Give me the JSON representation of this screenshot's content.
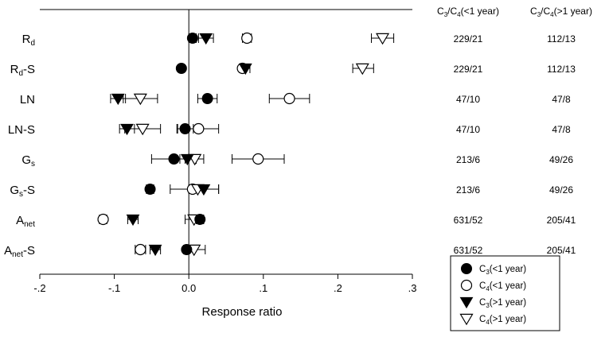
{
  "chart_data": {
    "type": "scatter",
    "title": "",
    "xlabel": "Response ratio",
    "ylabel": "",
    "xlim": [
      -0.2,
      0.3
    ],
    "xticks": [
      {
        "v": -0.2,
        "label": "-.2"
      },
      {
        "v": -0.1,
        "label": "-.1"
      },
      {
        "v": 0.0,
        "label": "0.0"
      },
      {
        "v": 0.1,
        "label": ".1"
      },
      {
        "v": 0.2,
        "label": ".2"
      },
      {
        "v": 0.3,
        "label": ".3"
      }
    ],
    "grid": false,
    "reference_line": 0,
    "categories": [
      {
        "base": "R",
        "sub": "d",
        "suffix": ""
      },
      {
        "base": "R",
        "sub": "d",
        "suffix": "-S"
      },
      {
        "base": "LN",
        "sub": "",
        "suffix": ""
      },
      {
        "base": "LN",
        "sub": "",
        "suffix": "-S"
      },
      {
        "base": "G",
        "sub": "s",
        "suffix": ""
      },
      {
        "base": "G",
        "sub": "s",
        "suffix": "-S"
      },
      {
        "base": "A",
        "sub": "net",
        "suffix": ""
      },
      {
        "base": "A",
        "sub": "net",
        "suffix": "-S"
      }
    ],
    "series": [
      {
        "legend": {
          "base": "C",
          "sub": "3",
          "suffix": "(<1 year)"
        },
        "marker": "filled-circle",
        "points": [
          {
            "mean": 0.005,
            "lo": 0.0,
            "hi": 0.01
          },
          {
            "mean": -0.01,
            "lo": -0.013,
            "hi": -0.007
          },
          {
            "mean": 0.025,
            "lo": 0.012,
            "hi": 0.038
          },
          {
            "mean": -0.005,
            "lo": -0.016,
            "hi": 0.006
          },
          {
            "mean": -0.02,
            "lo": -0.05,
            "hi": 0.01
          },
          {
            "mean": -0.052,
            "lo": -0.057,
            "hi": -0.047
          },
          {
            "mean": 0.015,
            "lo": 0.01,
            "hi": 0.02
          },
          {
            "mean": -0.003,
            "lo": -0.007,
            "hi": 0.001
          }
        ]
      },
      {
        "legend": {
          "base": "C",
          "sub": "4",
          "suffix": "(<1 year)"
        },
        "marker": "open-circle",
        "points": [
          {
            "mean": 0.078,
            "lo": 0.072,
            "hi": 0.084
          },
          {
            "mean": 0.072,
            "lo": 0.068,
            "hi": 0.076
          },
          {
            "mean": 0.135,
            "lo": 0.108,
            "hi": 0.162
          },
          {
            "mean": 0.013,
            "lo": -0.015,
            "hi": 0.04
          },
          {
            "mean": 0.093,
            "lo": 0.058,
            "hi": 0.128
          },
          {
            "mean": 0.005,
            "lo": -0.025,
            "hi": 0.04
          },
          {
            "mean": -0.115,
            "lo": -0.12,
            "hi": -0.11
          },
          {
            "mean": -0.065,
            "lo": -0.072,
            "hi": -0.058
          }
        ]
      },
      {
        "legend": {
          "base": "C",
          "sub": "3",
          "suffix": "(>1 year)"
        },
        "marker": "filled-triangle",
        "points": [
          {
            "mean": 0.023,
            "lo": 0.013,
            "hi": 0.033
          },
          {
            "mean": 0.076,
            "lo": 0.07,
            "hi": 0.082
          },
          {
            "mean": -0.095,
            "lo": -0.105,
            "hi": -0.085
          },
          {
            "mean": -0.083,
            "lo": -0.093,
            "hi": -0.073
          },
          {
            "mean": -0.002,
            "lo": -0.012,
            "hi": 0.008
          },
          {
            "mean": 0.02,
            "lo": 0.0,
            "hi": 0.04
          },
          {
            "mean": -0.075,
            "lo": -0.082,
            "hi": -0.068
          },
          {
            "mean": -0.045,
            "lo": -0.052,
            "hi": -0.038
          }
        ]
      },
      {
        "legend": {
          "base": "C",
          "sub": "4",
          "suffix": "(>1 year)"
        },
        "marker": "open-triangle",
        "points": [
          {
            "mean": 0.26,
            "lo": 0.245,
            "hi": 0.275
          },
          {
            "mean": 0.233,
            "lo": 0.22,
            "hi": 0.248
          },
          {
            "mean": -0.065,
            "lo": -0.088,
            "hi": -0.042
          },
          {
            "mean": -0.062,
            "lo": -0.086,
            "hi": -0.038
          },
          {
            "mean": 0.008,
            "lo": -0.005,
            "hi": 0.02
          },
          {
            "mean": 0.012,
            "lo": 0.003,
            "hi": 0.021
          },
          {
            "mean": 0.007,
            "lo": -0.005,
            "hi": 0.019
          },
          {
            "mean": 0.007,
            "lo": -0.005,
            "hi": 0.022
          }
        ]
      }
    ],
    "side_columns": [
      {
        "header": {
          "a": "C",
          "sa": "3",
          "mid": "/C",
          "sb": "4",
          "rest": "(<1 year)"
        },
        "values": [
          "229/21",
          "229/21",
          "47/10",
          "47/10",
          "213/6",
          "213/6",
          "631/52",
          "631/52"
        ]
      },
      {
        "header": {
          "a": "C",
          "sa": "3",
          "mid": "/C",
          "sb": "4",
          "rest": "(>1 year)"
        },
        "values": [
          "112/13",
          "112/13",
          "47/8",
          "47/8",
          "49/26",
          "49/26",
          "205/41",
          "205/41"
        ]
      }
    ],
    "legend_position": "bottom-right"
  }
}
